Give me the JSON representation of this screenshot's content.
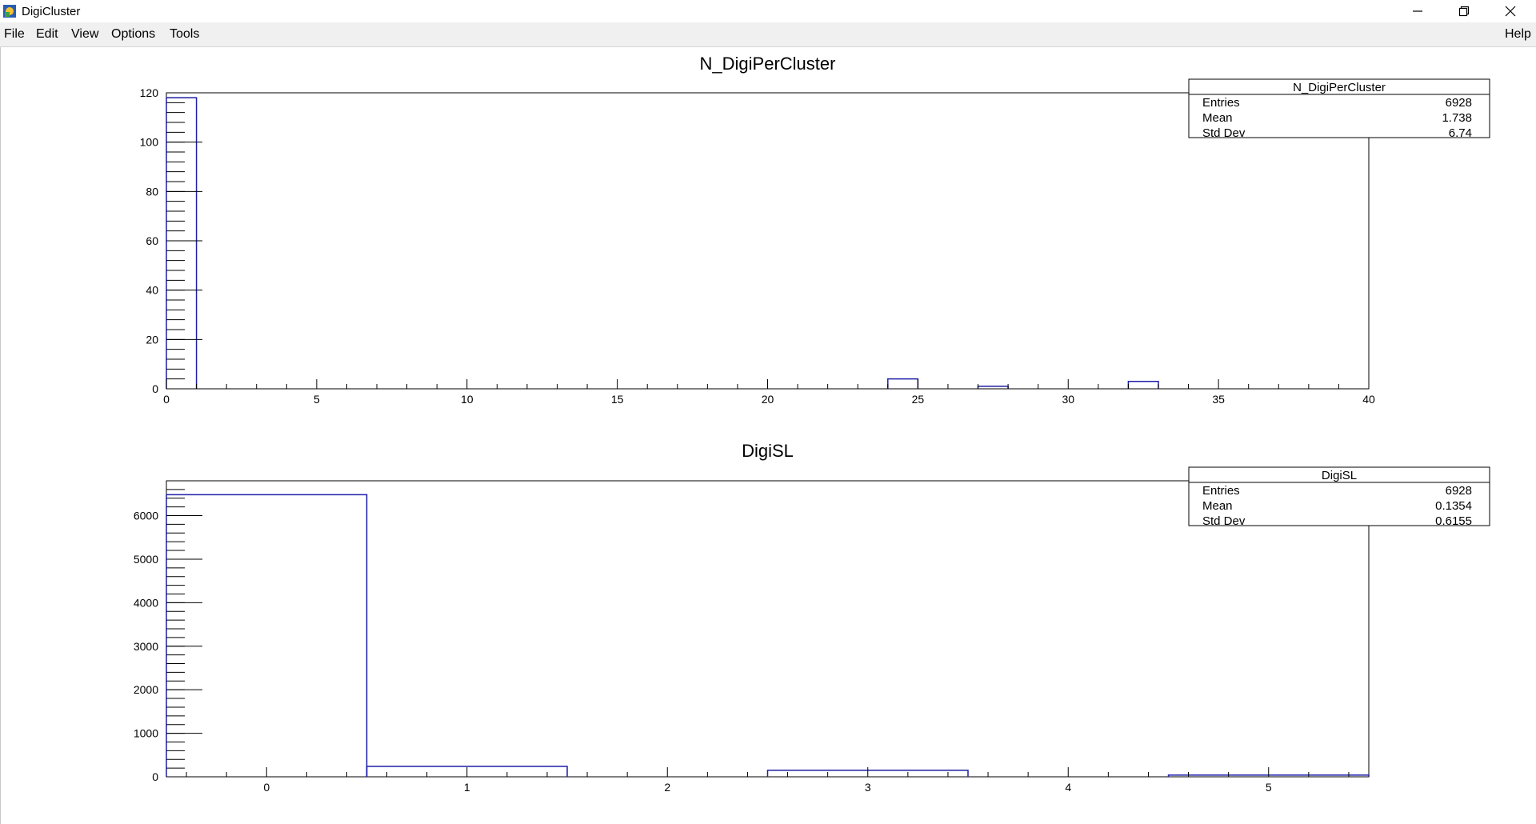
{
  "window": {
    "title": "DigiCluster"
  },
  "menu": {
    "file": "File",
    "edit": "Edit",
    "view": "View",
    "options": "Options",
    "tools": "Tools",
    "help": "Help"
  },
  "colors": {
    "histogram_line": "#1f1fa8",
    "axis": "#000000",
    "menubar": "#f0f0f0"
  },
  "icons": {
    "app": "root-app-icon",
    "minimize": "minimize-icon",
    "maximize": "restore-icon",
    "close": "close-icon"
  },
  "chart_data": [
    {
      "type": "bar",
      "title": "N_DigiPerCluster",
      "xlabel": "",
      "ylabel": "",
      "xlim": [
        0,
        40
      ],
      "ylim": [
        0,
        120
      ],
      "x_ticks": [
        0,
        5,
        10,
        15,
        20,
        25,
        30,
        35,
        40
      ],
      "y_ticks": [
        0,
        20,
        40,
        60,
        80,
        100,
        120
      ],
      "bins": [
        {
          "low": 0,
          "high": 1,
          "value": 118
        },
        {
          "low": 24,
          "high": 25,
          "value": 4
        },
        {
          "low": 27,
          "high": 28,
          "value": 1
        },
        {
          "low": 32,
          "high": 33,
          "value": 3
        }
      ],
      "stats": {
        "header": "N_DigiPerCluster",
        "rows": [
          {
            "label": "Entries",
            "value": "6928"
          },
          {
            "label": "Mean",
            "value": "1.738"
          },
          {
            "label": "Std Dev",
            "value": "6.74"
          }
        ],
        "placement": "top-right"
      }
    },
    {
      "type": "bar",
      "title": "DigiSL",
      "xlabel": "",
      "ylabel": "",
      "xlim": [
        -0.5,
        5.5
      ],
      "ylim": [
        0,
        6800
      ],
      "x_ticks": [
        0,
        1,
        2,
        3,
        4,
        5
      ],
      "y_ticks": [
        0,
        1000,
        2000,
        3000,
        4000,
        5000,
        6000
      ],
      "bins": [
        {
          "low": -0.5,
          "high": 0.5,
          "value": 6480
        },
        {
          "low": 0.5,
          "high": 1.5,
          "value": 240
        },
        {
          "low": 2.5,
          "high": 3.5,
          "value": 150
        },
        {
          "low": 4.5,
          "high": 5.5,
          "value": 40
        }
      ],
      "stats": {
        "header": "DigiSL",
        "rows": [
          {
            "label": "Entries",
            "value": "6928"
          },
          {
            "label": "Mean",
            "value": "0.1354"
          },
          {
            "label": "Std Dev",
            "value": "0.6155"
          }
        ],
        "placement": "top-right"
      }
    }
  ]
}
